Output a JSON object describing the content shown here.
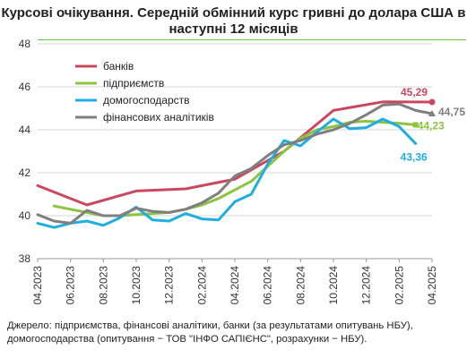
{
  "chart_data": {
    "type": "line",
    "title": "Курсові очікування. Середній обмінний курс гривні до долара США в наступні 12 місяців",
    "xlabel": "",
    "ylabel": "",
    "ylim": [
      38,
      48
    ],
    "y_ticks": [
      "38",
      "40",
      "42",
      "44",
      "46",
      "48"
    ],
    "x_ticks": [
      "04.2023",
      "06.2023",
      "08.2023",
      "10.2023",
      "12.2023",
      "02.2024",
      "04.2024",
      "06.2024",
      "08.2024",
      "10.2024",
      "12.2024",
      "02.2025",
      "04.2025"
    ],
    "grid": "horizontal",
    "legend_position": "top-left",
    "series": [
      {
        "name": "банків",
        "color": "#c9485f",
        "points": [
          [
            "04.2023",
            41.4
          ],
          [
            "07.2023",
            40.5
          ],
          [
            "10.2023",
            41.15
          ],
          [
            "01.2024",
            41.25
          ],
          [
            "04.2024",
            41.7
          ],
          [
            "07.2024",
            43.0
          ],
          [
            "10.2024",
            44.9
          ],
          [
            "01.2025",
            45.3
          ],
          [
            "04.2025",
            45.29
          ]
        ],
        "end_label": "45,29"
      },
      {
        "name": "підприємств",
        "color": "#8cc43f",
        "points": [
          [
            "05.2023",
            40.45
          ],
          [
            "06.2023",
            40.3
          ],
          [
            "07.2023",
            40.15
          ],
          [
            "08.2023",
            40.0
          ],
          [
            "09.2023",
            40.0
          ],
          [
            "10.2023",
            40.05
          ],
          [
            "11.2023",
            40.1
          ],
          [
            "12.2023",
            40.15
          ],
          [
            "01.2024",
            40.3
          ],
          [
            "02.2024",
            40.5
          ],
          [
            "03.2024",
            40.8
          ],
          [
            "04.2024",
            41.2
          ],
          [
            "05.2024",
            41.6
          ],
          [
            "06.2024",
            42.3
          ],
          [
            "07.2024",
            43.0
          ],
          [
            "08.2024",
            43.6
          ],
          [
            "09.2024",
            44.0
          ],
          [
            "10.2024",
            44.15
          ],
          [
            "11.2024",
            44.35
          ],
          [
            "12.2024",
            44.4
          ],
          [
            "01.2025",
            44.35
          ],
          [
            "02.2025",
            44.3
          ],
          [
            "03.2025",
            44.23
          ]
        ],
        "end_label": "44,23"
      },
      {
        "name": "домогосподарств",
        "color": "#1faee0",
        "points": [
          [
            "04.2023",
            39.65
          ],
          [
            "05.2023",
            39.45
          ],
          [
            "06.2023",
            39.65
          ],
          [
            "07.2023",
            39.75
          ],
          [
            "08.2023",
            39.55
          ],
          [
            "09.2023",
            39.9
          ],
          [
            "10.2023",
            40.4
          ],
          [
            "11.2023",
            39.8
          ],
          [
            "12.2023",
            39.75
          ],
          [
            "01.2024",
            40.1
          ],
          [
            "02.2024",
            39.85
          ],
          [
            "03.2024",
            39.8
          ],
          [
            "04.2024",
            40.65
          ],
          [
            "05.2024",
            41.0
          ],
          [
            "06.2024",
            42.4
          ],
          [
            "07.2024",
            43.5
          ],
          [
            "08.2024",
            43.25
          ],
          [
            "09.2024",
            43.9
          ],
          [
            "10.2024",
            44.5
          ],
          [
            "11.2024",
            44.05
          ],
          [
            "12.2024",
            44.1
          ],
          [
            "01.2025",
            44.5
          ],
          [
            "02.2025",
            44.15
          ],
          [
            "03.2025",
            43.36
          ]
        ],
        "end_label": "43,36"
      },
      {
        "name": "фінансових аналітиків",
        "color": "#7f7f7f",
        "points": [
          [
            "04.2023",
            40.05
          ],
          [
            "05.2023",
            39.75
          ],
          [
            "06.2023",
            39.65
          ],
          [
            "07.2023",
            40.25
          ],
          [
            "08.2023",
            40.0
          ],
          [
            "09.2023",
            40.0
          ],
          [
            "10.2023",
            40.35
          ],
          [
            "11.2023",
            40.2
          ],
          [
            "12.2023",
            40.15
          ],
          [
            "01.2024",
            40.3
          ],
          [
            "02.2024",
            40.6
          ],
          [
            "03.2024",
            41.05
          ],
          [
            "04.2024",
            41.85
          ],
          [
            "05.2024",
            42.2
          ],
          [
            "06.2024",
            42.8
          ],
          [
            "07.2024",
            43.3
          ],
          [
            "08.2024",
            43.5
          ],
          [
            "09.2024",
            43.8
          ],
          [
            "10.2024",
            44.0
          ],
          [
            "11.2024",
            44.3
          ],
          [
            "12.2024",
            44.7
          ],
          [
            "01.2025",
            45.15
          ],
          [
            "02.2025",
            45.2
          ],
          [
            "03.2025",
            44.9
          ],
          [
            "04.2025",
            44.75
          ]
        ],
        "end_label": "44,75"
      }
    ]
  },
  "source_note": "Джерело: підприємства, фінансові аналітики, банки (за результатами опитувань НБУ), домогосподарства (опитування − ТОВ \"ІНФО САПІЄНС\", розрахунки − НБУ)."
}
